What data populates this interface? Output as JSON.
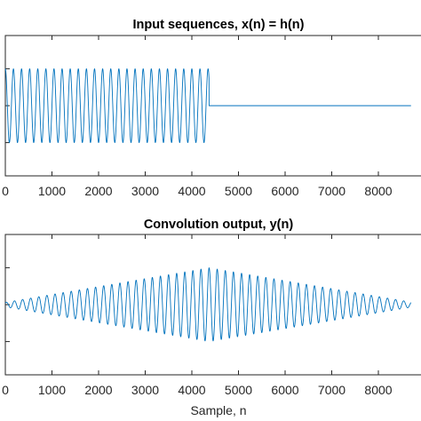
{
  "chart_data": [
    {
      "type": "line",
      "title": "Input sequences, x(n) = h(n)",
      "xlabel": "",
      "ylabel": "",
      "xlim": [
        0,
        8700
      ],
      "ylim": [
        -1.9,
        1.9
      ],
      "xticks": [
        0,
        1000,
        2000,
        3000,
        4000,
        5000,
        6000,
        7000,
        8000
      ],
      "xtick_labels": [
        "0",
        "1000",
        "2000",
        "3000",
        "4000",
        "5000",
        "6000",
        "7000",
        "8000"
      ],
      "grid": false,
      "series": [
        {
          "description_kind": "sinusoid burst then zero",
          "amplitude": 1,
          "cycles_per_sample": 0.00575,
          "x_end": 4370,
          "x_final": 8700,
          "color": "#0072BD"
        }
      ]
    },
    {
      "type": "line",
      "title": "Convolution output, y(n)",
      "xlabel": "Sample, n",
      "ylabel": "",
      "xlim": [
        0,
        8700
      ],
      "ylim": [
        -1.9,
        1.9
      ],
      "xticks": [
        0,
        1000,
        2000,
        3000,
        4000,
        5000,
        6000,
        7000,
        8000
      ],
      "xtick_labels": [
        "0",
        "1000",
        "2000",
        "3000",
        "4000",
        "5000",
        "6000",
        "7000",
        "8000"
      ],
      "grid": false,
      "series": [
        {
          "description_kind": "triangular-envelope sinusoid",
          "peak_amplitude": 1,
          "peak_x": 4370,
          "cycles_per_sample": 0.00575,
          "x_end": 8700,
          "color": "#0072BD"
        }
      ]
    }
  ]
}
